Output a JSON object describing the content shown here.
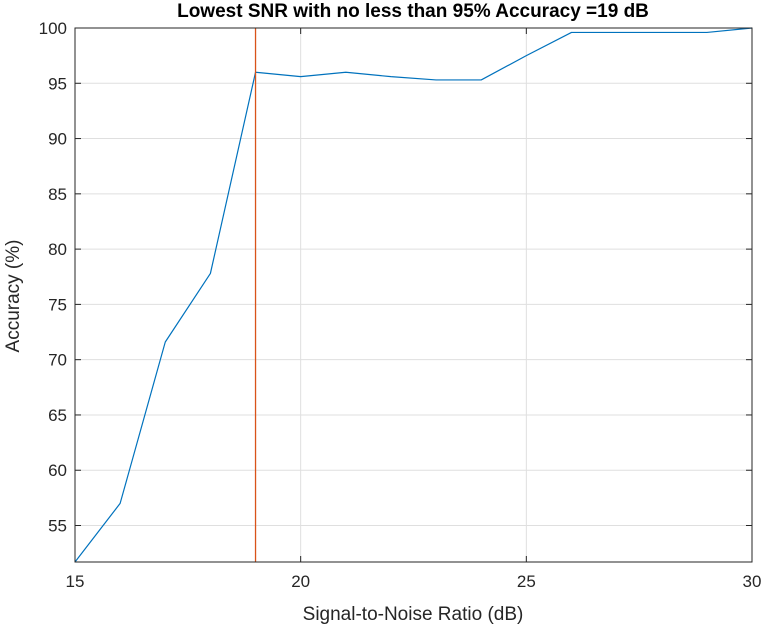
{
  "chart_data": {
    "type": "line",
    "title": "Lowest SNR with no less than 95% Accuracy =19 dB",
    "xlabel": "Signal-to-Noise Ratio (dB)",
    "ylabel": "Accuracy (%)",
    "xlim": [
      15,
      30
    ],
    "ylim": [
      51.7,
      100
    ],
    "xticks": [
      15,
      20,
      25,
      30
    ],
    "yticks": [
      55,
      60,
      65,
      70,
      75,
      80,
      85,
      90,
      95,
      100
    ],
    "grid": true,
    "series": [
      {
        "color": "#0072BD",
        "x": [
          15,
          16,
          17,
          18,
          19,
          20,
          21,
          22,
          23,
          24,
          25,
          26,
          27,
          28,
          29,
          30
        ],
        "y": [
          51.7,
          57.0,
          71.6,
          77.8,
          96.0,
          95.6,
          96.0,
          95.6,
          95.3,
          95.3,
          97.5,
          99.6,
          99.6,
          99.6,
          99.6,
          100.0
        ]
      }
    ],
    "vertical_line": {
      "x": 19,
      "color": "#D95319"
    }
  }
}
